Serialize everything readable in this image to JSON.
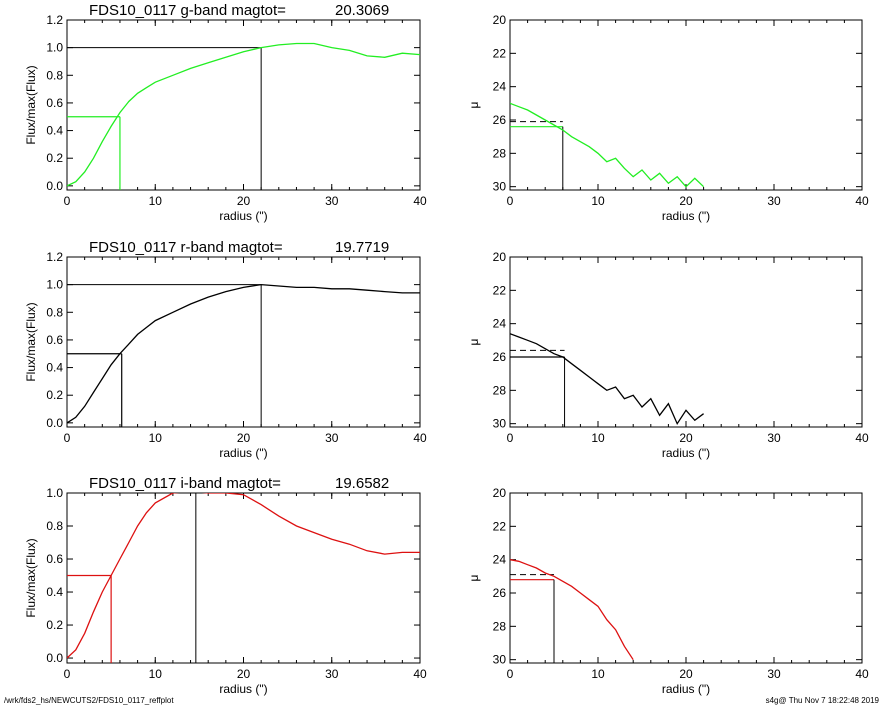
{
  "chart_data": [
    {
      "type": "line",
      "panel": "growth-curve",
      "band": "g",
      "title": "FDS10_0117 g-band  magtot=",
      "magtot": "20.3069",
      "xlabel": "radius (\")",
      "ylabel": "Flux/max(Flux)",
      "xlim": [
        0,
        40
      ],
      "ylim": [
        -0.03,
        1.2
      ],
      "xticks": [
        "0",
        "10",
        "20",
        "30",
        "40"
      ],
      "yticks": [
        "0.0",
        "0.2",
        "0.4",
        "0.6",
        "0.8",
        "1.0",
        "1.2"
      ],
      "color": "#22ee22",
      "x": [
        0,
        1,
        2,
        3,
        4,
        5,
        6,
        7,
        8,
        9,
        10,
        12,
        14,
        16,
        18,
        20,
        22,
        24,
        26,
        28,
        30,
        32,
        34,
        36,
        38,
        40
      ],
      "y": [
        0,
        0.03,
        0.1,
        0.2,
        0.32,
        0.43,
        0.53,
        0.61,
        0.67,
        0.71,
        0.75,
        0.8,
        0.85,
        0.89,
        0.93,
        0.97,
        1.0,
        1.02,
        1.03,
        1.03,
        1.0,
        0.98,
        0.94,
        0.93,
        0.96,
        0.95
      ],
      "reference_lines": {
        "half_flux": 0.5,
        "r_eff": 6.0,
        "full_flux": 1.0,
        "r_tot": 22.0
      }
    },
    {
      "type": "line",
      "panel": "surface-brightness",
      "band": "g",
      "ylabel": "μ",
      "xlabel": "radius (\")",
      "xlim": [
        0,
        40
      ],
      "ylim": [
        30.2,
        20
      ],
      "xticks": [
        "0",
        "10",
        "20",
        "30",
        "40"
      ],
      "yticks": [
        "20",
        "22",
        "24",
        "26",
        "28",
        "30"
      ],
      "color": "#22ee22",
      "x": [
        0,
        1,
        2,
        3,
        4,
        5,
        6,
        7,
        8,
        9,
        10,
        11,
        12,
        13,
        14,
        15,
        16,
        17,
        18,
        19,
        20,
        21,
        22
      ],
      "y": [
        25.0,
        25.2,
        25.4,
        25.7,
        26.0,
        26.3,
        26.6,
        27.0,
        27.3,
        27.6,
        28.0,
        28.5,
        28.3,
        28.9,
        29.4,
        29.0,
        29.6,
        29.2,
        29.8,
        29.4,
        30.0,
        29.5,
        30.0
      ],
      "reference_lines": {
        "mu_eff": 26.4,
        "mu_mean": 26.1,
        "r_eff": 6.0
      }
    },
    {
      "type": "line",
      "panel": "growth-curve",
      "band": "r",
      "title": "FDS10_0117 r-band  magtot=",
      "magtot": "19.7719",
      "xlabel": "radius (\")",
      "ylabel": "Flux/max(Flux)",
      "xlim": [
        0,
        40
      ],
      "ylim": [
        -0.03,
        1.2
      ],
      "xticks": [
        "0",
        "10",
        "20",
        "30",
        "40"
      ],
      "yticks": [
        "0.0",
        "0.2",
        "0.4",
        "0.6",
        "0.8",
        "1.0",
        "1.2"
      ],
      "color": "#000000",
      "x": [
        0,
        1,
        2,
        3,
        4,
        5,
        6,
        7,
        8,
        9,
        10,
        12,
        14,
        16,
        18,
        20,
        22,
        24,
        26,
        28,
        30,
        32,
        34,
        36,
        38,
        40
      ],
      "y": [
        0,
        0.04,
        0.12,
        0.22,
        0.32,
        0.42,
        0.5,
        0.57,
        0.64,
        0.69,
        0.74,
        0.8,
        0.86,
        0.91,
        0.95,
        0.98,
        1.0,
        0.99,
        0.98,
        0.98,
        0.97,
        0.97,
        0.96,
        0.95,
        0.94,
        0.94
      ],
      "reference_lines": {
        "half_flux": 0.5,
        "r_eff": 6.2,
        "full_flux": 1.0,
        "r_tot": 22.0
      }
    },
    {
      "type": "line",
      "panel": "surface-brightness",
      "band": "r",
      "ylabel": "μ",
      "xlabel": "radius (\")",
      "xlim": [
        0,
        40
      ],
      "ylim": [
        30.2,
        20
      ],
      "xticks": [
        "0",
        "10",
        "20",
        "30",
        "40"
      ],
      "yticks": [
        "20",
        "22",
        "24",
        "26",
        "28",
        "30"
      ],
      "color": "#000000",
      "x": [
        0,
        1,
        2,
        3,
        4,
        5,
        6,
        7,
        8,
        9,
        10,
        11,
        12,
        13,
        14,
        15,
        16,
        17,
        18,
        19,
        20,
        21,
        22
      ],
      "y": [
        24.6,
        24.8,
        25.0,
        25.2,
        25.5,
        25.8,
        26.0,
        26.4,
        26.8,
        27.2,
        27.6,
        28.0,
        27.8,
        28.5,
        28.3,
        29.0,
        28.5,
        29.5,
        28.8,
        30.0,
        29.2,
        29.8,
        29.4
      ],
      "reference_lines": {
        "mu_eff": 26.0,
        "mu_mean": 25.6,
        "r_eff": 6.2
      }
    },
    {
      "type": "line",
      "panel": "growth-curve",
      "band": "i",
      "title": "FDS10_0117 i-band  magtot=",
      "magtot": "19.6582",
      "xlabel": "radius (\")",
      "ylabel": "Flux/max(Flux)",
      "xlim": [
        0,
        40
      ],
      "ylim": [
        -0.03,
        1.0
      ],
      "xticks": [
        "0",
        "10",
        "20",
        "30",
        "40"
      ],
      "yticks": [
        "0.0",
        "0.2",
        "0.4",
        "0.6",
        "0.8",
        "1.0"
      ],
      "color": "#dd1111",
      "x": [
        0,
        1,
        2,
        3,
        4,
        5,
        6,
        7,
        8,
        9,
        10,
        12,
        14,
        16,
        18,
        20,
        22,
        24,
        26,
        28,
        30,
        32,
        34,
        36,
        38,
        40
      ],
      "y": [
        0,
        0.05,
        0.15,
        0.28,
        0.4,
        0.5,
        0.6,
        0.7,
        0.8,
        0.88,
        0.94,
        1.0,
        1.01,
        1.0,
        1.0,
        0.99,
        0.93,
        0.86,
        0.8,
        0.76,
        0.72,
        0.69,
        0.65,
        0.63,
        0.64,
        0.64
      ],
      "reference_lines": {
        "half_flux": 0.5,
        "r_eff": 5.0,
        "full_flux": 1.0,
        "r_tot": 14.6
      }
    },
    {
      "type": "line",
      "panel": "surface-brightness",
      "band": "i",
      "ylabel": "μ",
      "xlabel": "radius (\")",
      "xlim": [
        0,
        40
      ],
      "ylim": [
        30.2,
        20
      ],
      "xticks": [
        "0",
        "10",
        "20",
        "30",
        "40"
      ],
      "yticks": [
        "20",
        "22",
        "24",
        "26",
        "28",
        "30"
      ],
      "color": "#dd1111",
      "x": [
        0,
        1,
        2,
        3,
        4,
        5,
        6,
        7,
        8,
        9,
        10,
        11,
        12,
        13,
        14
      ],
      "y": [
        24.0,
        24.1,
        24.3,
        24.5,
        24.8,
        25.0,
        25.3,
        25.6,
        26.0,
        26.4,
        26.8,
        27.6,
        28.2,
        29.2,
        30.0
      ],
      "reference_lines": {
        "mu_eff": 25.2,
        "mu_mean": 24.9,
        "r_eff": 5.0
      }
    }
  ],
  "footer": {
    "left": "/wrk/fds2_hs/NEWCUTS2/FDS10_0117_reffplot",
    "right": "s4g@  Thu Nov  7 18:22:48 2019"
  }
}
